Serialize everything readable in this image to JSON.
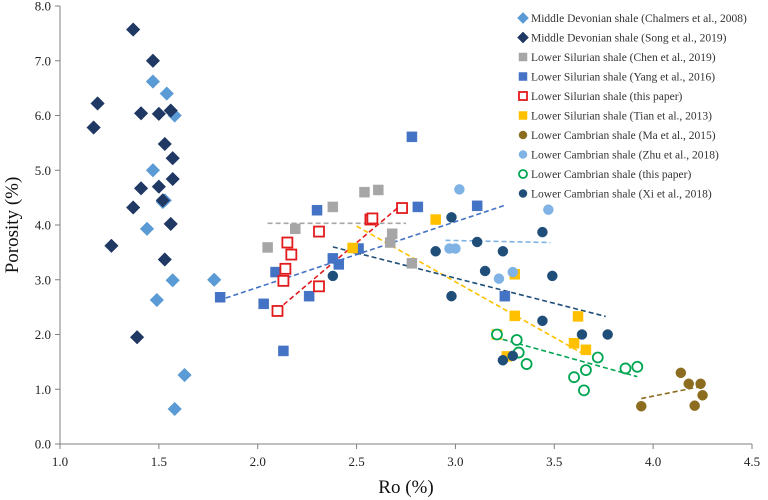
{
  "chart_data": {
    "type": "scatter",
    "xlabel": "Ro (%)",
    "ylabel": "Porosity (%)",
    "xlim": [
      1.0,
      4.5
    ],
    "ylim": [
      0.0,
      8.0
    ],
    "xticks": [
      1.0,
      1.5,
      2.0,
      2.5,
      3.0,
      3.5,
      4.0,
      4.5
    ],
    "yticks": [
      0.0,
      1.0,
      2.0,
      3.0,
      4.0,
      5.0,
      6.0,
      7.0,
      8.0
    ],
    "xtick_labels": [
      "1.0",
      "1.5",
      "2.0",
      "2.5",
      "3.0",
      "3.5",
      "4.0",
      "4.5"
    ],
    "ytick_labels": [
      "0.0",
      "1.0",
      "2.0",
      "3.0",
      "4.0",
      "5.0",
      "6.0",
      "7.0",
      "8.0"
    ],
    "legend_position": "top-right",
    "series": [
      {
        "name": "Middle Devonian shale (Chalmers et al., 2008)",
        "marker": "diamond",
        "color": "#5b9bd5",
        "filled": true,
        "points": [
          [
            1.47,
            6.62
          ],
          [
            1.54,
            6.4
          ],
          [
            1.58,
            6.0
          ],
          [
            1.47,
            5.0
          ],
          [
            1.53,
            4.45
          ],
          [
            1.52,
            4.42
          ],
          [
            1.44,
            3.93
          ],
          [
            1.57,
            2.99
          ],
          [
            1.78,
            3.0
          ],
          [
            1.49,
            2.63
          ],
          [
            1.63,
            1.26
          ],
          [
            1.58,
            0.64
          ]
        ]
      },
      {
        "name": "Middle Devonian shale (Song et al., 2019)",
        "marker": "diamond",
        "color": "#1f3864",
        "filled": true,
        "points": [
          [
            1.37,
            7.57
          ],
          [
            1.47,
            7.0
          ],
          [
            1.19,
            6.22
          ],
          [
            1.17,
            5.78
          ],
          [
            1.41,
            6.04
          ],
          [
            1.5,
            6.03
          ],
          [
            1.56,
            6.09
          ],
          [
            1.53,
            5.48
          ],
          [
            1.57,
            5.22
          ],
          [
            1.57,
            4.84
          ],
          [
            1.41,
            4.67
          ],
          [
            1.5,
            4.7
          ],
          [
            1.52,
            4.45
          ],
          [
            1.37,
            4.32
          ],
          [
            1.56,
            4.02
          ],
          [
            1.26,
            3.62
          ],
          [
            1.53,
            3.37
          ],
          [
            1.39,
            1.95
          ]
        ]
      },
      {
        "name": "Lower Silurian shale (Chen et al., 2019)",
        "marker": "square",
        "color": "#a6a6a6",
        "filled": true,
        "points": [
          [
            2.05,
            3.59
          ],
          [
            2.19,
            3.93
          ],
          [
            2.38,
            4.33
          ],
          [
            2.54,
            4.6
          ],
          [
            2.61,
            4.64
          ],
          [
            2.68,
            3.84
          ],
          [
            2.67,
            3.68
          ],
          [
            2.78,
            3.3
          ]
        ]
      },
      {
        "name": "Lower Silurian shale (Yang et al., 2016)",
        "marker": "square",
        "color": "#4472c4",
        "filled": true,
        "points": [
          [
            1.81,
            2.68
          ],
          [
            2.03,
            2.56
          ],
          [
            2.09,
            3.14
          ],
          [
            2.13,
            1.7
          ],
          [
            2.26,
            2.7
          ],
          [
            2.3,
            4.27
          ],
          [
            2.38,
            3.39
          ],
          [
            2.41,
            3.28
          ],
          [
            2.51,
            3.57
          ],
          [
            2.78,
            5.61
          ],
          [
            2.81,
            4.33
          ],
          [
            3.11,
            4.35
          ],
          [
            3.25,
            2.7
          ]
        ]
      },
      {
        "name": "Lower Silurian shale (this paper)",
        "marker": "square",
        "color": "#e31a1c",
        "filled": false,
        "points": [
          [
            2.1,
            2.43
          ],
          [
            2.13,
            2.98
          ],
          [
            2.14,
            3.2
          ],
          [
            2.15,
            3.68
          ],
          [
            2.17,
            3.46
          ],
          [
            2.31,
            2.88
          ],
          [
            2.31,
            3.88
          ],
          [
            2.57,
            4.1
          ],
          [
            2.58,
            4.12
          ],
          [
            2.73,
            4.31
          ]
        ]
      },
      {
        "name": "Lower Silurian shale (Tian et al., 2013)",
        "marker": "square",
        "color": "#ffc000",
        "filled": true,
        "points": [
          [
            2.48,
            3.58
          ],
          [
            2.9,
            4.1
          ],
          [
            3.21,
            2.0
          ],
          [
            3.26,
            1.6
          ],
          [
            3.3,
            3.1
          ],
          [
            3.3,
            2.34
          ],
          [
            3.6,
            1.84
          ],
          [
            3.62,
            2.33
          ],
          [
            3.66,
            1.72
          ]
        ]
      },
      {
        "name": "Lower Cambrian shale (Ma et al., 2015)",
        "marker": "circle",
        "color": "#8c6d1f",
        "filled": true,
        "points": [
          [
            3.94,
            0.69
          ],
          [
            4.14,
            1.3
          ],
          [
            4.18,
            1.1
          ],
          [
            4.21,
            0.7
          ],
          [
            4.24,
            1.1
          ],
          [
            4.25,
            0.89
          ]
        ]
      },
      {
        "name": "Lower Cambrian shale (Zhu et al., 2018)",
        "marker": "circle",
        "color": "#7fb2e5",
        "filled": true,
        "points": [
          [
            3.02,
            4.65
          ],
          [
            2.97,
            3.57
          ],
          [
            3.0,
            3.57
          ],
          [
            3.22,
            3.02
          ],
          [
            3.29,
            3.14
          ],
          [
            3.47,
            4.28
          ]
        ]
      },
      {
        "name": "Lower Cambrian shale (this paper)",
        "marker": "circle",
        "color": "#00a651",
        "filled": false,
        "points": [
          [
            3.21,
            2.0
          ],
          [
            3.31,
            1.9
          ],
          [
            3.32,
            1.67
          ],
          [
            3.36,
            1.46
          ],
          [
            3.6,
            1.22
          ],
          [
            3.66,
            1.35
          ],
          [
            3.65,
            0.98
          ],
          [
            3.72,
            1.58
          ],
          [
            3.86,
            1.38
          ],
          [
            3.92,
            1.41
          ]
        ]
      },
      {
        "name": "Lower Cambrian shale (Xi et al., 2018)",
        "marker": "circle",
        "color": "#1f4e79",
        "filled": true,
        "points": [
          [
            2.38,
            3.07
          ],
          [
            2.9,
            3.52
          ],
          [
            2.98,
            4.14
          ],
          [
            2.98,
            2.7
          ],
          [
            3.11,
            3.69
          ],
          [
            3.15,
            3.16
          ],
          [
            3.24,
            3.52
          ],
          [
            3.24,
            1.53
          ],
          [
            3.29,
            1.61
          ],
          [
            3.44,
            2.25
          ],
          [
            3.44,
            3.87
          ],
          [
            3.49,
            3.07
          ],
          [
            3.64,
            2.0
          ],
          [
            3.77,
            2.0
          ]
        ]
      }
    ],
    "trendlines": [
      {
        "color": "#4472c4",
        "from": [
          1.8,
          2.62
        ],
        "to": [
          3.25,
          4.36
        ]
      },
      {
        "color": "#e31a1c",
        "from": [
          2.1,
          2.45
        ],
        "to": [
          2.72,
          4.35
        ]
      },
      {
        "color": "#a6a6a6",
        "from": [
          2.05,
          4.03
        ],
        "to": [
          2.75,
          4.03
        ]
      },
      {
        "color": "#ffc000",
        "from": [
          2.5,
          3.98
        ],
        "to": [
          3.66,
          1.62
        ]
      },
      {
        "color": "#00a651",
        "from": [
          3.2,
          1.95
        ],
        "to": [
          3.92,
          1.23
        ]
      },
      {
        "color": "#8c6d1f",
        "from": [
          3.94,
          0.83
        ],
        "to": [
          4.24,
          1.05
        ]
      },
      {
        "color": "#1f4e79",
        "from": [
          2.38,
          3.6
        ],
        "to": [
          3.76,
          2.33
        ]
      },
      {
        "color": "#7fb2e5",
        "from": [
          2.95,
          3.72
        ],
        "to": [
          3.48,
          3.68
        ]
      }
    ]
  }
}
